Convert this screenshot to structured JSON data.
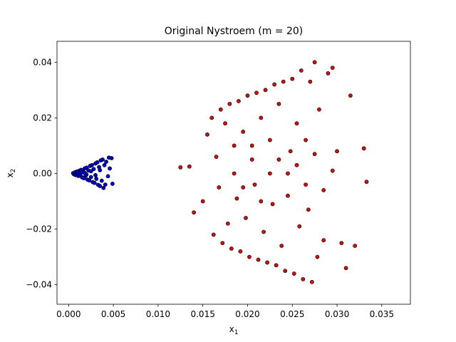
{
  "chart_data": {
    "type": "scatter",
    "title": "Original Nystroem (m = 20)",
    "xlabel": "x",
    "xlabel_sub": "1",
    "ylabel": "x",
    "ylabel_sub": "2",
    "xlim": [
      -0.0013,
      0.0382
    ],
    "ylim": [
      -0.047,
      0.0475
    ],
    "xticks": [
      0.0,
      0.005,
      0.01,
      0.015,
      0.02,
      0.025,
      0.03,
      0.035
    ],
    "xtick_labels": [
      "0.000",
      "0.005",
      "0.010",
      "0.015",
      "0.020",
      "0.025",
      "0.030",
      "0.035"
    ],
    "yticks": [
      -0.04,
      -0.02,
      0.0,
      0.02,
      0.04
    ],
    "ytick_labels": [
      "−0.04",
      "−0.02",
      "0.00",
      "0.02",
      "0.04"
    ],
    "grid": false,
    "series": [
      {
        "color": "#0000cc",
        "points": [
          [
            0.0005,
            0.0001
          ],
          [
            0.0006,
            -0.0003
          ],
          [
            0.0007,
            0.0004
          ],
          [
            0.0008,
            -0.0006
          ],
          [
            0.0009,
            0.0007
          ],
          [
            0.001,
            0.0
          ],
          [
            0.0011,
            -0.0009
          ],
          [
            0.0012,
            0.001
          ],
          [
            0.0013,
            -0.0004
          ],
          [
            0.0014,
            0.0013
          ],
          [
            0.0015,
            -0.0014
          ],
          [
            0.0016,
            0.0006
          ],
          [
            0.0017,
            -0.0017
          ],
          [
            0.0018,
            0.0018
          ],
          [
            0.0019,
            -0.0008
          ],
          [
            0.002,
            0.0021
          ],
          [
            0.0021,
            -0.0022
          ],
          [
            0.0022,
            0.0011
          ],
          [
            0.0023,
            -0.0025
          ],
          [
            0.0024,
            0.0027
          ],
          [
            0.0025,
            -0.0013
          ],
          [
            0.0026,
            0.003
          ],
          [
            0.0027,
            -0.0031
          ],
          [
            0.0028,
            0.0016
          ],
          [
            0.0029,
            -0.0034
          ],
          [
            0.003,
            0.0036
          ],
          [
            0.0031,
            -0.0019
          ],
          [
            0.0032,
            0.004
          ],
          [
            0.0033,
            -0.0041
          ],
          [
            0.0034,
            0.0023
          ],
          [
            0.0035,
            -0.0045
          ],
          [
            0.0036,
            0.0047
          ],
          [
            0.0037,
            -0.0026
          ],
          [
            0.0038,
            0.005
          ],
          [
            0.0039,
            -0.0052
          ],
          [
            0.004,
            0.003
          ],
          [
            0.0041,
            -0.004
          ],
          [
            0.0042,
            0.0042
          ],
          [
            0.0045,
            0.0057
          ],
          [
            0.0048,
            0.0055
          ],
          [
            0.0049,
            -0.0037
          ],
          [
            0.0044,
            -0.001
          ],
          [
            0.0046,
            0.0018
          ],
          [
            0.0015,
            0.0004
          ],
          [
            0.002,
            -0.0004
          ],
          [
            0.0025,
            0.0008
          ],
          [
            0.003,
            -0.0006
          ],
          [
            0.0035,
            0.0012
          ],
          [
            0.001,
            0.0003
          ],
          [
            0.0018,
            0.0002
          ]
        ]
      },
      {
        "color": "#cc1111",
        "points": [
          [
            0.0125,
            0.0022
          ],
          [
            0.0135,
            0.0025
          ],
          [
            0.014,
            -0.014
          ],
          [
            0.015,
            -0.01
          ],
          [
            0.0155,
            0.014
          ],
          [
            0.016,
            0.02
          ],
          [
            0.0162,
            -0.022
          ],
          [
            0.0165,
            0.006
          ],
          [
            0.0168,
            -0.005
          ],
          [
            0.017,
            0.023
          ],
          [
            0.0172,
            -0.025
          ],
          [
            0.0175,
            0.018
          ],
          [
            0.0178,
            -0.018
          ],
          [
            0.018,
            0.025
          ],
          [
            0.0182,
            -0.027
          ],
          [
            0.0185,
            0.01
          ],
          [
            0.0188,
            -0.009
          ],
          [
            0.019,
            0.026
          ],
          [
            0.0192,
            -0.028
          ],
          [
            0.0195,
            0.015
          ],
          [
            0.0198,
            -0.016
          ],
          [
            0.02,
            0.028
          ],
          [
            0.0202,
            -0.03
          ],
          [
            0.0205,
            0.005
          ],
          [
            0.0208,
            -0.004
          ],
          [
            0.021,
            0.029
          ],
          [
            0.0212,
            -0.031
          ],
          [
            0.0215,
            0.02
          ],
          [
            0.0218,
            -0.021
          ],
          [
            0.022,
            0.03
          ],
          [
            0.0222,
            -0.032
          ],
          [
            0.0225,
            0.012
          ],
          [
            0.0228,
            -0.011
          ],
          [
            0.023,
            0.032
          ],
          [
            0.0232,
            -0.033
          ],
          [
            0.0235,
            0.025
          ],
          [
            0.0238,
            -0.026
          ],
          [
            0.024,
            0.033
          ],
          [
            0.0242,
            -0.035
          ],
          [
            0.0245,
            0.0
          ],
          [
            0.0248,
            0.008
          ],
          [
            0.025,
            0.034
          ],
          [
            0.0252,
            -0.036
          ],
          [
            0.0255,
            0.018
          ],
          [
            0.0258,
            -0.019
          ],
          [
            0.026,
            0.037
          ],
          [
            0.0262,
            -0.038
          ],
          [
            0.0265,
            0.012
          ],
          [
            0.0268,
            -0.013
          ],
          [
            0.027,
            0.033
          ],
          [
            0.0272,
            -0.039
          ],
          [
            0.0275,
            0.04
          ],
          [
            0.0278,
            -0.03
          ],
          [
            0.028,
            0.023
          ],
          [
            0.0285,
            -0.024
          ],
          [
            0.029,
            0.036
          ],
          [
            0.0295,
            0.038
          ],
          [
            0.03,
            0.008
          ],
          [
            0.0305,
            -0.025
          ],
          [
            0.031,
            -0.034
          ],
          [
            0.0315,
            0.028
          ],
          [
            0.032,
            -0.026
          ],
          [
            0.033,
            0.009
          ],
          [
            0.0333,
            -0.003
          ],
          [
            0.0185,
            0.0
          ],
          [
            0.0195,
            -0.005
          ],
          [
            0.0205,
            0.01
          ],
          [
            0.0215,
            -0.01
          ],
          [
            0.0225,
            0.0
          ],
          [
            0.0235,
            0.005
          ],
          [
            0.0245,
            -0.008
          ],
          [
            0.0255,
            0.003
          ],
          [
            0.0265,
            -0.004
          ],
          [
            0.0275,
            0.007
          ],
          [
            0.0285,
            -0.006
          ],
          [
            0.0295,
            0.001
          ]
        ]
      }
    ]
  }
}
